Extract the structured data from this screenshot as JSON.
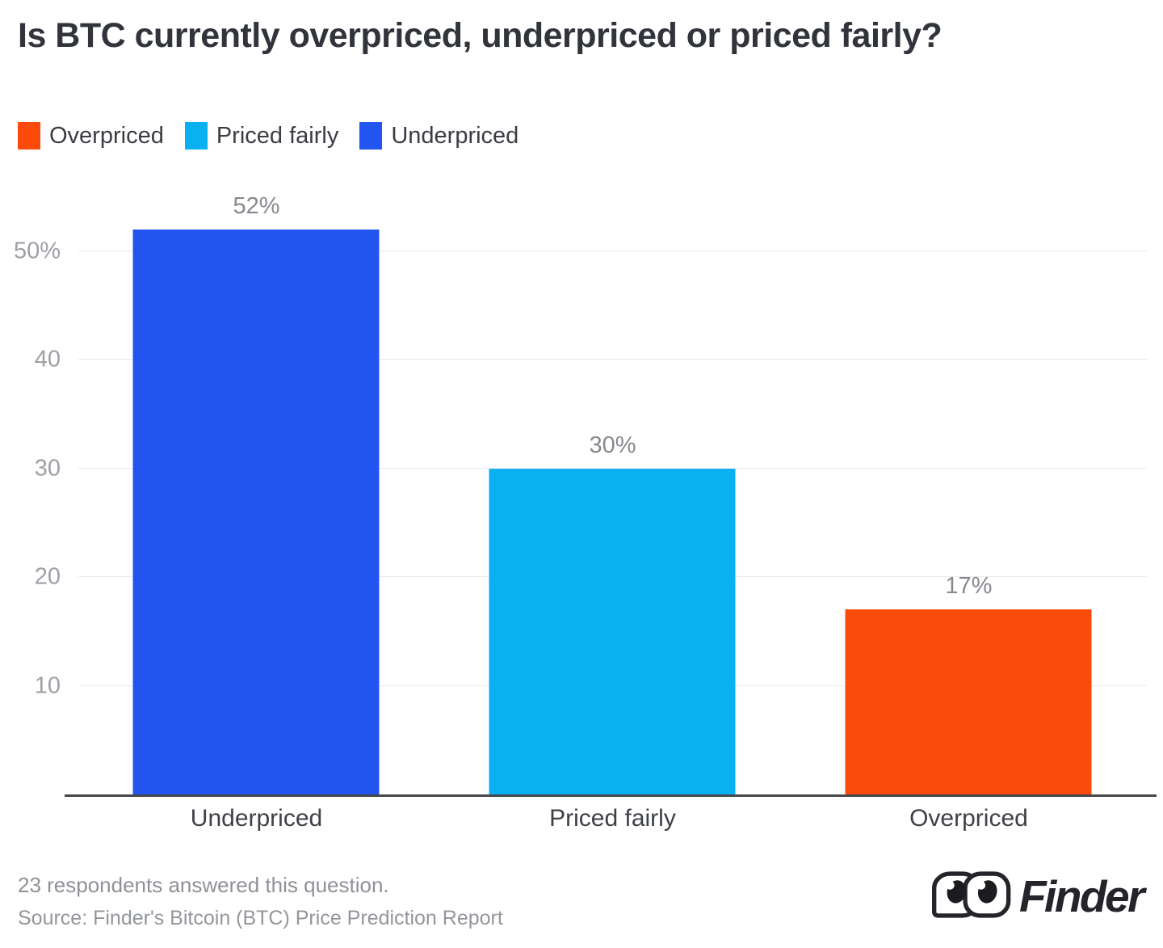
{
  "title": "Is BTC currently overpriced, underpriced or priced fairly?",
  "legend": [
    {
      "label": "Overpriced",
      "color": "#fa4b0a",
      "icon": "orange-swatch-icon"
    },
    {
      "label": "Priced fairly",
      "color": "#09b1f0",
      "icon": "cyan-swatch-icon"
    },
    {
      "label": "Underpriced",
      "color": "#2254f0",
      "icon": "blue-swatch-icon"
    }
  ],
  "chart_data": {
    "type": "bar",
    "title": "Is BTC currently overpriced, underpriced or priced fairly?",
    "categories": [
      "Underpriced",
      "Priced fairly",
      "Overpriced"
    ],
    "values": [
      52,
      30,
      17
    ],
    "value_labels": [
      "52%",
      "30%",
      "17%"
    ],
    "colors": [
      "#2254f0",
      "#09b1f0",
      "#fa4b0a"
    ],
    "xlabel": "",
    "ylabel": "",
    "ylim": [
      0,
      56
    ],
    "yticks": {
      "values": [
        10,
        20,
        30,
        40,
        50
      ],
      "labels": [
        "10",
        "20",
        "30",
        "40",
        "50%"
      ]
    },
    "grid": "horizontal",
    "legend_position": "top-left"
  },
  "footer": {
    "note": "23 respondents answered this question.",
    "source": "Source: Finder's Bitcoin (BTC) Price Prediction Report"
  },
  "logo": {
    "text": "Finder",
    "icon": "finder-goggles-icon"
  }
}
